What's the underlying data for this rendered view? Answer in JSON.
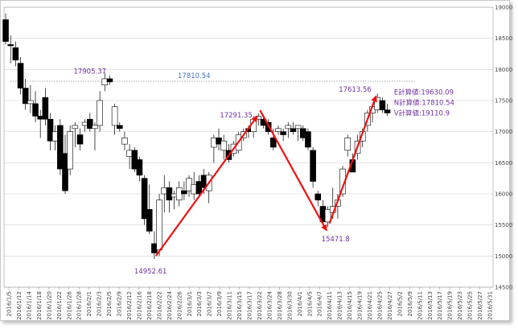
{
  "chart_data": {
    "type": "candlestick",
    "title": "",
    "xlabel": "",
    "ylabel": "",
    "ylim": [
      14500,
      19000
    ],
    "y_ticks": [
      14500,
      15000,
      15500,
      16000,
      16500,
      17000,
      17500,
      18000,
      18500,
      19000
    ],
    "y_axis_position": "right",
    "grid": "horizontal",
    "x_tick_labels": [
      "2016/1/5",
      "2016/1/12",
      "2016/1/14",
      "2016/1/18",
      "2016/1/20",
      "2016/1/22",
      "2016/1/26",
      "2016/1/28",
      "2016/2/1",
      "2016/2/3",
      "2016/2/5",
      "2016/2/9",
      "2016/2/12",
      "2016/2/16",
      "2016/2/18",
      "2016/2/22",
      "2016/2/24",
      "2016/2/26",
      "2016/3/1",
      "2016/3/3",
      "2016/3/7",
      "2016/3/9",
      "2016/3/11",
      "2016/3/15",
      "2016/3/17",
      "2016/3/22",
      "2016/3/24",
      "2016/3/28",
      "2016/3/30",
      "2016/4/1",
      "2016/4/5",
      "2016/4/7",
      "2016/4/11",
      "2016/4/13",
      "2016/4/15",
      "2016/4/19",
      "2016/4/21",
      "2016/4/25",
      "2016/4/27",
      "2016/5/2",
      "2016/5/9",
      "2016/5/11",
      "2016/5/13",
      "2016/5/17",
      "2016/5/19",
      "2016/5/23",
      "2016/5/25",
      "2016/5/27",
      "2016/5/31"
    ],
    "candles": [
      {
        "o": 18800,
        "h": 18900,
        "l": 18400,
        "c": 18450
      },
      {
        "o": 18400,
        "h": 18550,
        "l": 18100,
        "c": 18380
      },
      {
        "o": 18350,
        "h": 18450,
        "l": 18050,
        "c": 18150
      },
      {
        "o": 18100,
        "h": 18200,
        "l": 17600,
        "c": 17700
      },
      {
        "o": 17700,
        "h": 17850,
        "l": 17350,
        "c": 17450
      },
      {
        "o": 17450,
        "h": 17750,
        "l": 17300,
        "c": 17500
      },
      {
        "o": 17450,
        "h": 17650,
        "l": 17150,
        "c": 17250
      },
      {
        "o": 17250,
        "h": 17350,
        "l": 16900,
        "c": 17200
      },
      {
        "o": 17550,
        "h": 17700,
        "l": 17100,
        "c": 17200
      },
      {
        "o": 17200,
        "h": 17300,
        "l": 16700,
        "c": 16850
      },
      {
        "o": 16850,
        "h": 17100,
        "l": 16700,
        "c": 17000
      },
      {
        "o": 17100,
        "h": 17200,
        "l": 16300,
        "c": 16400
      },
      {
        "o": 16650,
        "h": 16950,
        "l": 16000,
        "c": 16050
      },
      {
        "o": 16400,
        "h": 17100,
        "l": 16300,
        "c": 17000
      },
      {
        "o": 17050,
        "h": 17150,
        "l": 16750,
        "c": 17100
      },
      {
        "o": 16950,
        "h": 17050,
        "l": 16700,
        "c": 16800
      },
      {
        "o": 17100,
        "h": 17200,
        "l": 17000,
        "c": 17150
      },
      {
        "o": 17200,
        "h": 17300,
        "l": 17000,
        "c": 17050
      },
      {
        "o": 17050,
        "h": 17150,
        "l": 16700,
        "c": 17100
      },
      {
        "o": 17100,
        "h": 17650,
        "l": 17000,
        "c": 17500
      },
      {
        "o": 17750,
        "h": 17950,
        "l": 17650,
        "c": 17850
      },
      {
        "o": 17850,
        "h": 17905.37,
        "l": 17750,
        "c": 17800
      },
      {
        "o": 17100,
        "h": 17450,
        "l": 16950,
        "c": 17400
      },
      {
        "o": 17100,
        "h": 17150,
        "l": 17000,
        "c": 17050
      },
      {
        "o": 16800,
        "h": 17000,
        "l": 16700,
        "c": 16900
      },
      {
        "o": 16600,
        "h": 16800,
        "l": 16400,
        "c": 16700
      },
      {
        "o": 16700,
        "h": 16750,
        "l": 16350,
        "c": 16400
      },
      {
        "o": 16550,
        "h": 16600,
        "l": 16200,
        "c": 16300
      },
      {
        "o": 16250,
        "h": 16300,
        "l": 15500,
        "c": 15600
      },
      {
        "o": 15750,
        "h": 16150,
        "l": 15350,
        "c": 15400
      },
      {
        "o": 15200,
        "h": 15400,
        "l": 14952.61,
        "c": 15050
      },
      {
        "o": 15100,
        "h": 16000,
        "l": 15000,
        "c": 15900
      },
      {
        "o": 16000,
        "h": 16300,
        "l": 15700,
        "c": 16100
      },
      {
        "o": 16100,
        "h": 16200,
        "l": 15700,
        "c": 15900
      },
      {
        "o": 15950,
        "h": 16050,
        "l": 15750,
        "c": 16000
      },
      {
        "o": 15900,
        "h": 16200,
        "l": 15800,
        "c": 16100
      },
      {
        "o": 16050,
        "h": 16200,
        "l": 15900,
        "c": 16000
      },
      {
        "o": 16050,
        "h": 16300,
        "l": 15950,
        "c": 16250
      },
      {
        "o": 16000,
        "h": 16350,
        "l": 15900,
        "c": 16150
      },
      {
        "o": 16200,
        "h": 16300,
        "l": 15950,
        "c": 16000
      },
      {
        "o": 16300,
        "h": 16400,
        "l": 16000,
        "c": 16100
      },
      {
        "o": 16050,
        "h": 16350,
        "l": 15850,
        "c": 16300
      },
      {
        "o": 16750,
        "h": 16950,
        "l": 16500,
        "c": 16900
      },
      {
        "o": 16900,
        "h": 17050,
        "l": 16700,
        "c": 16800
      },
      {
        "o": 16700,
        "h": 16950,
        "l": 16550,
        "c": 16850
      },
      {
        "o": 16700,
        "h": 16800,
        "l": 16500,
        "c": 16550
      },
      {
        "o": 16650,
        "h": 16850,
        "l": 16600,
        "c": 16800
      },
      {
        "o": 16700,
        "h": 17000,
        "l": 16650,
        "c": 16950
      },
      {
        "o": 16900,
        "h": 17050,
        "l": 16850,
        "c": 17000
      },
      {
        "o": 17050,
        "h": 17100,
        "l": 16900,
        "c": 17000
      },
      {
        "o": 17000,
        "h": 17250,
        "l": 16900,
        "c": 17200
      },
      {
        "o": 17200,
        "h": 17291.35,
        "l": 17100,
        "c": 17250
      },
      {
        "o": 17200,
        "h": 17250,
        "l": 17050,
        "c": 17100
      },
      {
        "o": 17150,
        "h": 17200,
        "l": 16950,
        "c": 17000
      },
      {
        "o": 16900,
        "h": 17050,
        "l": 16700,
        "c": 16750
      },
      {
        "o": 17000,
        "h": 17100,
        "l": 16950,
        "c": 17050
      },
      {
        "o": 17000,
        "h": 17050,
        "l": 16850,
        "c": 16950
      },
      {
        "o": 17050,
        "h": 17150,
        "l": 16900,
        "c": 17100
      },
      {
        "o": 17050,
        "h": 17150,
        "l": 16950,
        "c": 17000
      },
      {
        "o": 17050,
        "h": 17100,
        "l": 16850,
        "c": 17100
      },
      {
        "o": 17050,
        "h": 17100,
        "l": 16850,
        "c": 16900
      },
      {
        "o": 17000,
        "h": 17050,
        "l": 16700,
        "c": 16750
      },
      {
        "o": 16700,
        "h": 16750,
        "l": 16100,
        "c": 16200
      },
      {
        "o": 16000,
        "h": 16050,
        "l": 15800,
        "c": 15900
      },
      {
        "o": 15800,
        "h": 15900,
        "l": 15500,
        "c": 15550
      },
      {
        "o": 15550,
        "h": 15800,
        "l": 15471.8,
        "c": 15750
      },
      {
        "o": 15700,
        "h": 16100,
        "l": 15600,
        "c": 15800
      },
      {
        "o": 15800,
        "h": 16000,
        "l": 15600,
        "c": 15900
      },
      {
        "o": 16000,
        "h": 16450,
        "l": 15950,
        "c": 16400
      },
      {
        "o": 16700,
        "h": 16950,
        "l": 16600,
        "c": 16900
      },
      {
        "o": 16550,
        "h": 16650,
        "l": 16350,
        "c": 16350
      },
      {
        "o": 16650,
        "h": 16950,
        "l": 16550,
        "c": 16850
      },
      {
        "o": 16850,
        "h": 17050,
        "l": 16750,
        "c": 17000
      },
      {
        "o": 17100,
        "h": 17350,
        "l": 17000,
        "c": 17300
      },
      {
        "o": 17300,
        "h": 17450,
        "l": 17150,
        "c": 17400
      },
      {
        "o": 17350,
        "h": 17613.56,
        "l": 17300,
        "c": 17550
      },
      {
        "o": 17500,
        "h": 17550,
        "l": 17300,
        "c": 17350
      },
      {
        "o": 17350,
        "h": 17450,
        "l": 17250,
        "c": 17300
      }
    ],
    "reference_lines": [
      {
        "y": 17810.54,
        "label": "17810.54",
        "style": "dotted",
        "color": "#a0a0a0"
      }
    ],
    "annotations": [
      {
        "text": "17905.37",
        "x_index": 21,
        "y": 17905.37,
        "color": "#7030a0"
      },
      {
        "text": "14952.61",
        "x_index": 30,
        "y": 14952.61,
        "color": "#7030a0"
      },
      {
        "text": "17291.35",
        "x_index": 51,
        "y": 17291.35,
        "color": "#7030a0"
      },
      {
        "text": "15471.8",
        "x_index": 65,
        "y": 15471.8,
        "color": "#7030a0"
      },
      {
        "text": "17613.56",
        "x_index": 75,
        "y": 17613.56,
        "color": "#7030a0"
      },
      {
        "text": "E計算値:19630.09",
        "x_index": 78,
        "y": 17600,
        "color": "#7030a0"
      },
      {
        "text": "N計算値:17810.54",
        "x_index": 78,
        "y": 17430,
        "color": "#7030a0"
      },
      {
        "text": "V計算値:19110.9",
        "x_index": 78,
        "y": 17260,
        "color": "#7030a0"
      }
    ],
    "arrows": [
      {
        "from": [
          30,
          14952.61
        ],
        "to": [
          51,
          17291.35
        ],
        "color": "#ee1111"
      },
      {
        "from": [
          51,
          17291.35
        ],
        "to": [
          65,
          15471.8
        ],
        "color": "#ee1111"
      },
      {
        "from": [
          65,
          15471.8
        ],
        "to": [
          75,
          17613.56
        ],
        "color": "#ee1111"
      }
    ],
    "colors": {
      "up_fill": "#ffffff",
      "down_fill": "#000000",
      "wick": "#000000",
      "arrow": "#ee1111",
      "annotation": "#7030a0",
      "ref_label": "#4472c4",
      "grid": "#d0d0d0"
    }
  }
}
